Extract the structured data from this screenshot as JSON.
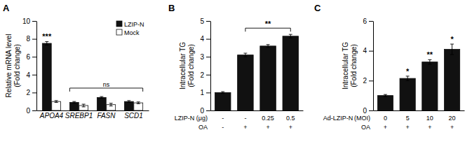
{
  "chart_data": [
    {
      "type": "bar",
      "title": "A",
      "categories": [
        "APOA4",
        "SREBP1",
        "FASN",
        "SCD1"
      ],
      "series": [
        {
          "name": "LZIP-N",
          "color": "#111111",
          "values": [
            7.5,
            0.9,
            1.45,
            1.0
          ],
          "errors": [
            0.2,
            0.1,
            0.1,
            0.1
          ]
        },
        {
          "name": "Mock",
          "color": "#ffffff",
          "values": [
            1.0,
            0.55,
            0.65,
            0.85
          ],
          "errors": [
            0.1,
            0.15,
            0.15,
            0.1
          ]
        }
      ],
      "ylabel": "Relative mRNA level\n(Fold change)",
      "ylim": [
        0,
        10
      ],
      "yticks": [
        0,
        2,
        4,
        6,
        8,
        10
      ],
      "grid": false,
      "legend": "upper right",
      "annotations": [
        {
          "text": "***",
          "series": 0,
          "index": 0
        },
        {
          "text": "ns",
          "from": 1,
          "to": 3,
          "y": 2.5
        }
      ]
    },
    {
      "type": "bar",
      "title": "B",
      "values": [
        1.0,
        3.1,
        3.6,
        4.15
      ],
      "errors": [
        0.05,
        0.1,
        0.08,
        0.1
      ],
      "color": "#111111",
      "ylabel": "Intracellular TG\n(Fold change)",
      "ylim": [
        0,
        5
      ],
      "yticks": [
        0,
        1,
        2,
        3,
        4,
        5
      ],
      "grid": false,
      "x_rows": [
        {
          "label": "LZIP-N (μg)",
          "labels": [
            "-",
            "-",
            "0.25",
            "0.5"
          ]
        },
        {
          "label": "OA",
          "labels": [
            "-",
            "+",
            "+",
            "+"
          ]
        }
      ],
      "annotations": [
        {
          "text": "**",
          "from": 1,
          "to": 3,
          "y": 4.6
        }
      ]
    },
    {
      "type": "bar",
      "title": "C",
      "values": [
        1.0,
        2.15,
        3.25,
        4.1
      ],
      "errors": [
        0.07,
        0.15,
        0.15,
        0.35
      ],
      "color": "#111111",
      "ylabel": "Intracellular TG\n(Fold change)",
      "ylim": [
        0,
        6
      ],
      "yticks": [
        0,
        2,
        4,
        6
      ],
      "grid": false,
      "x_rows": [
        {
          "label": "Ad-LZIP-N (MOI)",
          "labels": [
            "0",
            "5",
            "10",
            "20"
          ]
        },
        {
          "label": "OA",
          "labels": [
            "+",
            "+",
            "+",
            "+"
          ]
        }
      ],
      "annotations": [
        {
          "text": "*",
          "index": 1
        },
        {
          "text": "**",
          "index": 2
        },
        {
          "text": "*",
          "index": 3
        }
      ]
    }
  ]
}
